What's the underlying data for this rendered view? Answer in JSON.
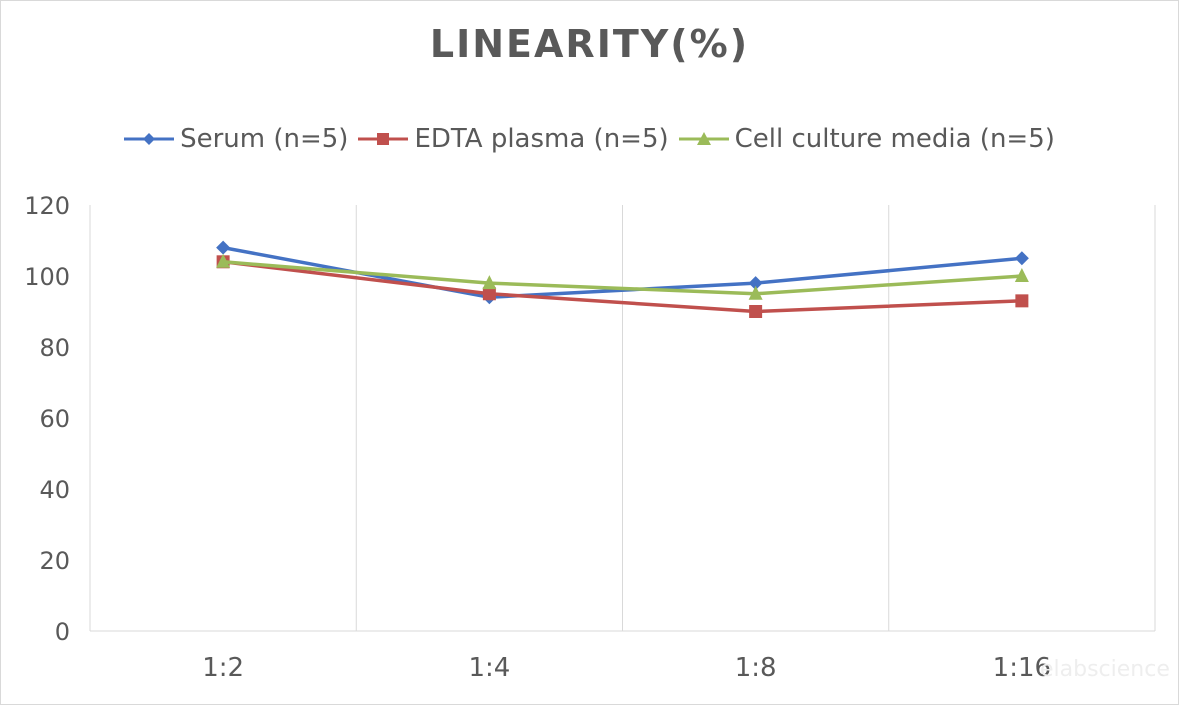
{
  "chart_data": {
    "type": "line",
    "title": "LINEARITY(%)",
    "categories": [
      "1:2",
      "1:4",
      "1:8",
      "1:16"
    ],
    "series": [
      {
        "name": "Serum (n=5)",
        "values": [
          108,
          94,
          98,
          105
        ],
        "color": "#4472c4",
        "marker": "diamond"
      },
      {
        "name": "EDTA plasma (n=5)",
        "values": [
          104,
          95,
          90,
          93
        ],
        "color": "#c0504d",
        "marker": "square"
      },
      {
        "name": "Cell culture media (n=5)",
        "values": [
          104,
          98,
          95,
          100
        ],
        "color": "#9bbb59",
        "marker": "triangle"
      }
    ],
    "ylim": [
      0,
      120
    ],
    "yticks": [
      "0",
      "20",
      "40",
      "60",
      "80",
      "100",
      "120"
    ],
    "xlabel": "",
    "ylabel": "",
    "grid": "vertical",
    "legend": "top"
  },
  "watermark": "elabscience"
}
